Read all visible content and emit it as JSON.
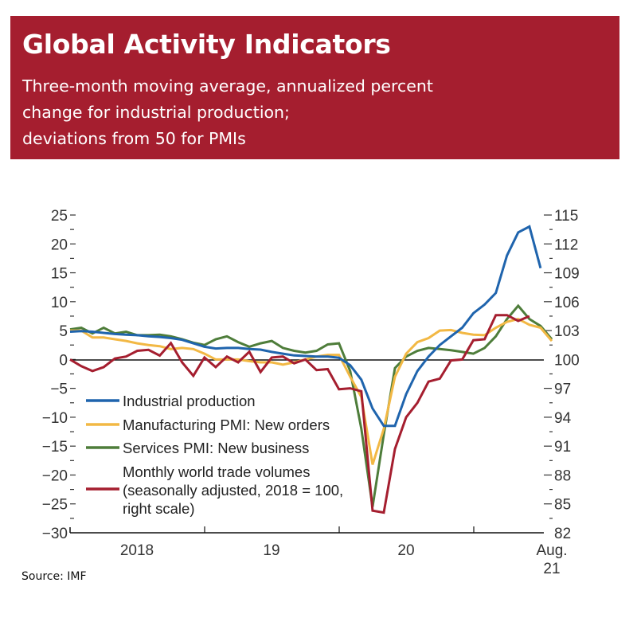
{
  "header": {
    "title": "Global Activity Indicators",
    "subtitle_lines": [
      "Three-month moving average, annualized percent",
      "change for industrial production;",
      "deviations from 50 for PMIs"
    ]
  },
  "source": "Source: IMF",
  "colors": {
    "header_bg": "#a51e2f",
    "industrial_production": "#1f64ad",
    "manufacturing_pmi": "#f2b844",
    "services_pmi": "#4e7d3a",
    "trade_volumes": "#a51e2f"
  },
  "chart_data": {
    "type": "line",
    "title": "Global Activity Indicators",
    "subtitle": "Three-month moving average, annualized percent change for industrial production; deviations from 50 for PMIs",
    "x_start": "Jan 2018",
    "x_end": "Aug 2021",
    "x_unit": "month",
    "x_tick_labels": [
      "2018",
      "19",
      "20",
      "Aug.",
      "21"
    ],
    "left_axis": {
      "ylim": [
        -30,
        25
      ],
      "tick_labels": [
        "25",
        "20",
        "15",
        "10",
        "5",
        "0",
        "−5",
        "−10",
        "−15",
        "−20",
        "−25",
        "−30"
      ],
      "tick_values": [
        25,
        20,
        15,
        10,
        5,
        0,
        -5,
        -10,
        -15,
        -20,
        -25,
        -30
      ]
    },
    "right_axis": {
      "ylim": [
        82,
        115
      ],
      "tick_labels": [
        "115",
        "112",
        "109",
        "106",
        "103",
        "100",
        "97",
        "94",
        "91",
        "88",
        "85",
        "82"
      ],
      "tick_values": [
        115,
        112,
        109,
        106,
        103,
        100,
        97,
        94,
        91,
        88,
        85,
        82
      ]
    },
    "zero_line": 0,
    "legend_position": "bottom-left",
    "series": [
      {
        "name": "Industrial production",
        "key": "industrial_production",
        "axis": "left",
        "start_month": 0,
        "values": [
          4.8,
          4.9,
          4.8,
          4.6,
          4.4,
          4.3,
          4.2,
          4.0,
          3.9,
          3.7,
          3.4,
          2.8,
          2.2,
          1.9,
          2.0,
          2.0,
          1.8,
          1.7,
          1.3,
          1.0,
          0.7,
          0.6,
          0.5,
          0.5,
          0.3,
          -1.0,
          -3.5,
          -8.5,
          -11.5,
          -11.5,
          -6.0,
          -2.0,
          0.5,
          2.5,
          4.0,
          5.5,
          8.0,
          9.5,
          11.5,
          18.0,
          22.0,
          23.0,
          15.8
        ]
      },
      {
        "name": "Manufacturing PMI: New orders",
        "key": "manufacturing_pmi",
        "axis": "left",
        "start_month": 0,
        "values": [
          5.0,
          5.0,
          3.8,
          3.8,
          3.5,
          3.2,
          2.8,
          2.5,
          2.3,
          1.8,
          2.0,
          1.8,
          1.0,
          0.0,
          0.0,
          0.0,
          -0.3,
          -0.5,
          -0.5,
          -0.9,
          -0.5,
          0.0,
          0.5,
          0.8,
          0.8,
          -3.0,
          -6.5,
          -18.2,
          -12.0,
          -3.0,
          1.0,
          3.0,
          3.7,
          5.0,
          5.1,
          4.6,
          4.3,
          4.2,
          5.5,
          6.5,
          7.0,
          6.0,
          5.5,
          3.2
        ]
      },
      {
        "name": "Services PMI: New business",
        "key": "services_pmi",
        "axis": "left",
        "start_month": 0,
        "values": [
          5.2,
          5.5,
          4.5,
          5.5,
          4.5,
          4.8,
          4.2,
          4.2,
          4.3,
          4.0,
          3.5,
          2.9,
          2.5,
          3.5,
          4.0,
          3.0,
          2.2,
          2.8,
          3.2,
          2.0,
          1.5,
          1.2,
          1.5,
          2.6,
          2.8,
          -2.0,
          -12.0,
          -25.5,
          -13.0,
          -1.5,
          0.5,
          1.5,
          2.0,
          1.8,
          1.6,
          1.3,
          1.0,
          2.0,
          4.0,
          7.0,
          9.3,
          7.0,
          5.8,
          3.5
        ]
      },
      {
        "name": "Monthly world trade volumes (seasonally adjusted, 2018 = 100, right scale)",
        "key": "trade_volumes",
        "axis": "right",
        "start_month": 0,
        "values": [
          100.0,
          99.3,
          98.8,
          99.2,
          100.1,
          100.3,
          100.9,
          101.0,
          100.4,
          101.7,
          99.7,
          98.3,
          100.2,
          99.2,
          100.3,
          99.7,
          100.8,
          98.7,
          100.2,
          100.3,
          99.6,
          100.0,
          98.9,
          99.0,
          96.9,
          97.0,
          96.7,
          84.3,
          84.1,
          90.7,
          94.0,
          95.5,
          97.7,
          98.0,
          99.9,
          100.0,
          102.0,
          102.1,
          104.6,
          104.6,
          104.0,
          104.5
        ]
      }
    ],
    "legend": [
      {
        "key": "industrial_production",
        "lines": [
          "Industrial production"
        ]
      },
      {
        "key": "manufacturing_pmi",
        "lines": [
          "Manufacturing PMI: New orders"
        ]
      },
      {
        "key": "services_pmi",
        "lines": [
          "Services PMI: New business"
        ]
      },
      {
        "key": "trade_volumes",
        "lines": [
          "Monthly world trade volumes",
          "(seasonally adjusted, 2018 = 100,",
          "right scale)"
        ]
      }
    ]
  }
}
